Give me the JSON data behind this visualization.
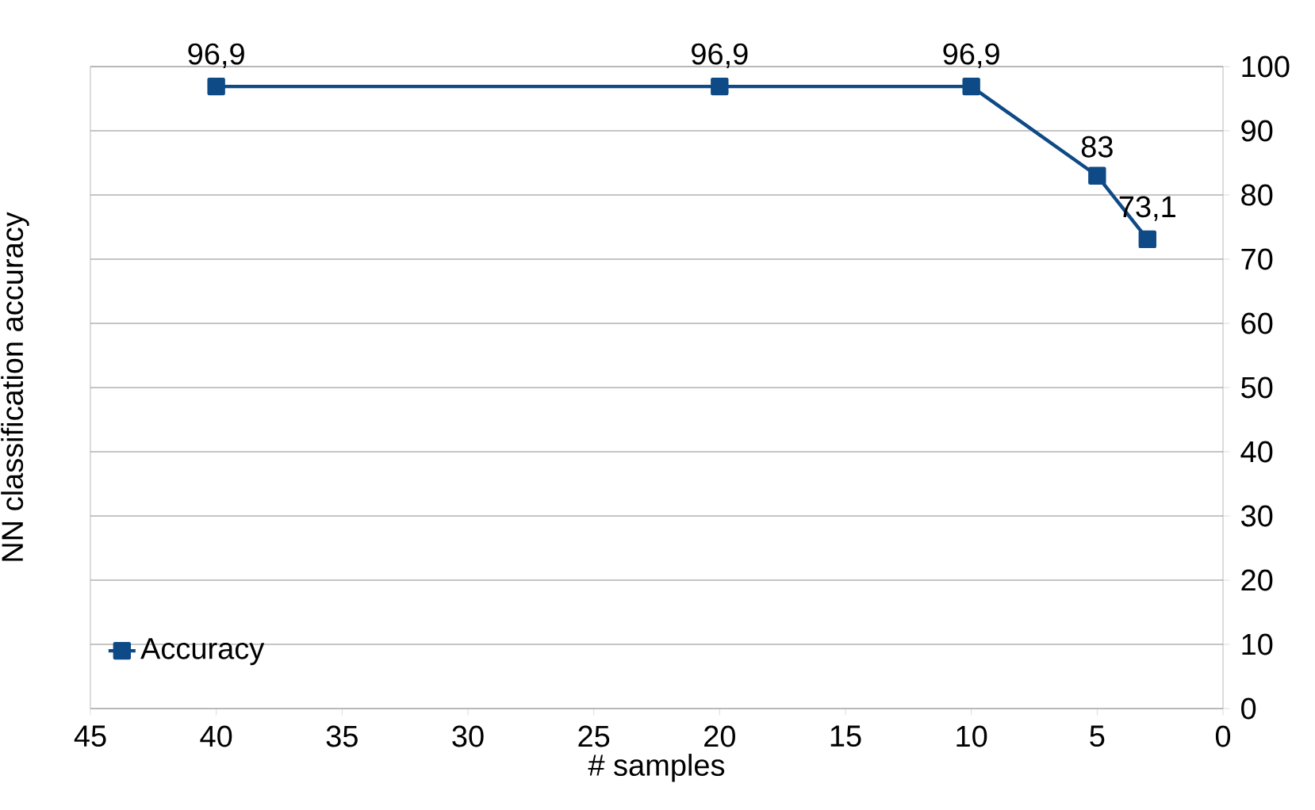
{
  "chart_data": {
    "type": "line",
    "xlabel": "# samples",
    "ylabel": "NN classification accuracy",
    "x": [
      40,
      20,
      10,
      5,
      3
    ],
    "series": [
      {
        "name": "Accuracy",
        "color": "#0e4a86",
        "values": [
          96.9,
          96.9,
          96.9,
          83,
          73.1
        ],
        "value_labels": [
          "96,9",
          "96,9",
          "96,9",
          "83",
          "73,1"
        ]
      }
    ],
    "xlim": [
      45,
      0
    ],
    "xticks": [
      45,
      40,
      35,
      30,
      25,
      20,
      15,
      10,
      5,
      0
    ],
    "ylim": [
      0,
      100
    ],
    "yticks": [
      0,
      10,
      20,
      30,
      40,
      50,
      60,
      70,
      80,
      90,
      100
    ],
    "grid": "y",
    "legend": "bottom left",
    "marker": "square",
    "line_style": "solid"
  }
}
